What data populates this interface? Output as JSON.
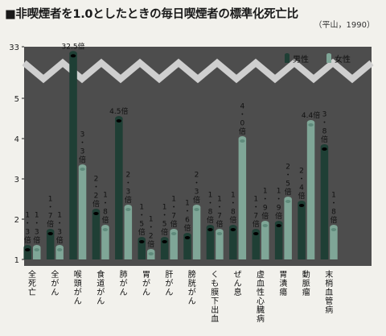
{
  "title": "■非喫煙者を1.0としたときの毎日喫煙者の標準化死亡比",
  "source": "（平山，1990）",
  "colors": {
    "male": "#1f3f35",
    "female": "#7fa697",
    "panel": "#4d4d4d",
    "band": "#cfcfcf"
  },
  "chart_data": {
    "type": "bar",
    "categories": [
      "全死亡",
      "全がん",
      "喉頭がん",
      "食道がん",
      "肺がん",
      "胃がん",
      "肝がん",
      "膀胱がん",
      "くも膜下出血",
      "ぜん息",
      "虚血性心臓病",
      "胃潰瘍",
      "動脈瘤",
      "末梢血管病"
    ],
    "series": [
      {
        "name": "男性",
        "values": [
          1.3,
          1.7,
          32.5,
          2.2,
          4.5,
          1.5,
          1.5,
          1.6,
          1.8,
          1.8,
          1.7,
          1.9,
          2.4,
          3.8
        ]
      },
      {
        "name": "女性",
        "values": [
          1.3,
          1.3,
          3.3,
          1.8,
          2.3,
          1.2,
          1.7,
          2.3,
          1.7,
          4.0,
          1.9,
          2.5,
          4.4,
          1.8
        ]
      }
    ],
    "value_labels": {
      "male": [
        "1・3倍",
        "1・7倍",
        "32.5倍",
        "2・2倍",
        "4.5倍",
        "1・5倍",
        "1・5倍",
        "1・6倍",
        "1・8倍",
        "1・8倍",
        "1・7倍",
        "1・9倍",
        "2・4倍",
        "3・8倍"
      ],
      "female": [
        "1・3倍",
        "1・3倍",
        "3・3倍",
        "1・8倍",
        "2・3倍",
        "1・2倍",
        "1・7倍",
        "2・3倍",
        "1・7倍",
        "4・0倍",
        "1・9倍",
        "2・5倍",
        "4.4倍",
        "1・8倍"
      ]
    },
    "yticks": [
      "1",
      "2",
      "3",
      "4",
      "5",
      "33"
    ],
    "ylim": [
      1,
      33
    ],
    "axis_break": "between 5 and 33",
    "legend": {
      "position": "top-right",
      "male": "男性",
      "female": "女性"
    }
  }
}
